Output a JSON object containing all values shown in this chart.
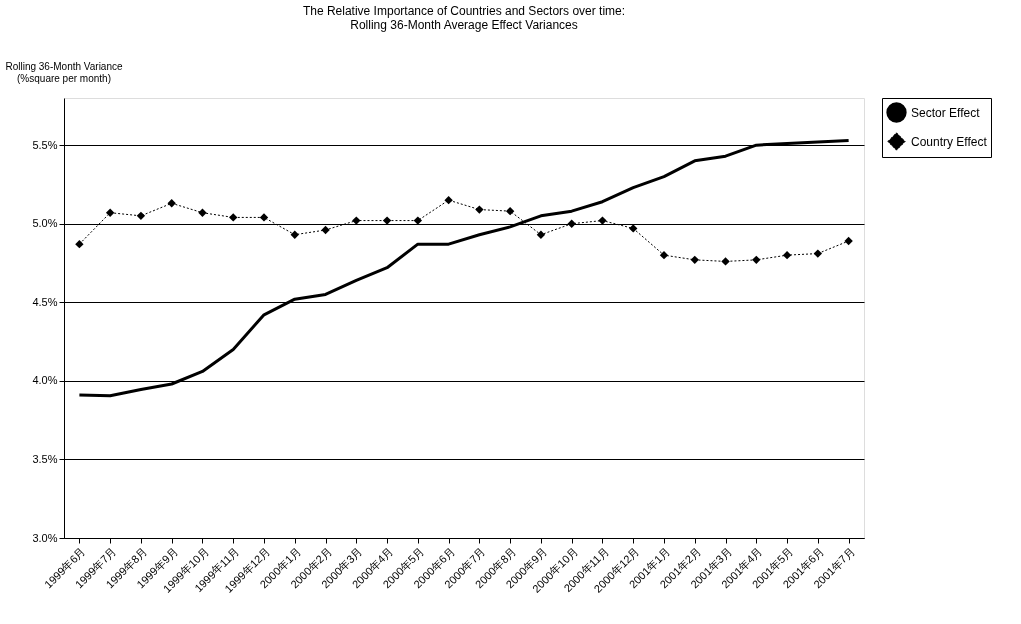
{
  "chart_data": {
    "type": "line",
    "title": "The Relative Importance of Countries and Sectors over time:\nRolling 36-Month Average Effect Variances",
    "ylabel": "Rolling 36-Month Variance\n(%square per month)",
    "categories": [
      "1999年6月",
      "1999年7月",
      "1999年8月",
      "1999年9月",
      "1999年10月",
      "1999年11月",
      "1999年12月",
      "2000年1月",
      "2000年2月",
      "2000年3月",
      "2000年4月",
      "2000年5月",
      "2000年6月",
      "2000年7月",
      "2000年8月",
      "2000年9月",
      "2000年10月",
      "2000年11月",
      "2000年12月",
      "2001年1月",
      "2001年2月",
      "2001年3月",
      "2001年4月",
      "2001年5月",
      "2001年6月",
      "2001年7月"
    ],
    "series": [
      {
        "name": "Sector Effect",
        "color": "#000000",
        "line_style": "solid",
        "marker": "none",
        "values": [
          3.91,
          3.905,
          3.945,
          3.98,
          4.06,
          4.2,
          4.42,
          4.52,
          4.55,
          4.64,
          4.72,
          4.87,
          4.87,
          4.93,
          4.98,
          5.05,
          5.08,
          5.14,
          5.23,
          5.3,
          5.4,
          5.43,
          5.5,
          5.51,
          5.52,
          5.53
        ]
      },
      {
        "name": "Country Effect",
        "color": "#000000",
        "line_style": "dotted",
        "marker": "diamond",
        "values": [
          4.87,
          5.07,
          5.05,
          5.13,
          5.07,
          5.04,
          5.04,
          4.93,
          4.96,
          5.02,
          5.02,
          5.02,
          5.15,
          5.09,
          5.08,
          4.93,
          5.0,
          5.02,
          4.97,
          4.8,
          4.77,
          4.76,
          4.77,
          4.8,
          4.81,
          4.89
        ]
      }
    ],
    "ylim": [
      3.0,
      5.8
    ],
    "yticks": [
      {
        "value": 3.0,
        "label": "3.0%"
      },
      {
        "value": 3.5,
        "label": "3.5%"
      },
      {
        "value": 4.0,
        "label": "4.0%"
      },
      {
        "value": 4.5,
        "label": "4.5%"
      },
      {
        "value": 5.0,
        "label": "5.0%"
      },
      {
        "value": 5.5,
        "label": "5.5%"
      }
    ],
    "grid": "y",
    "legend": "right"
  }
}
